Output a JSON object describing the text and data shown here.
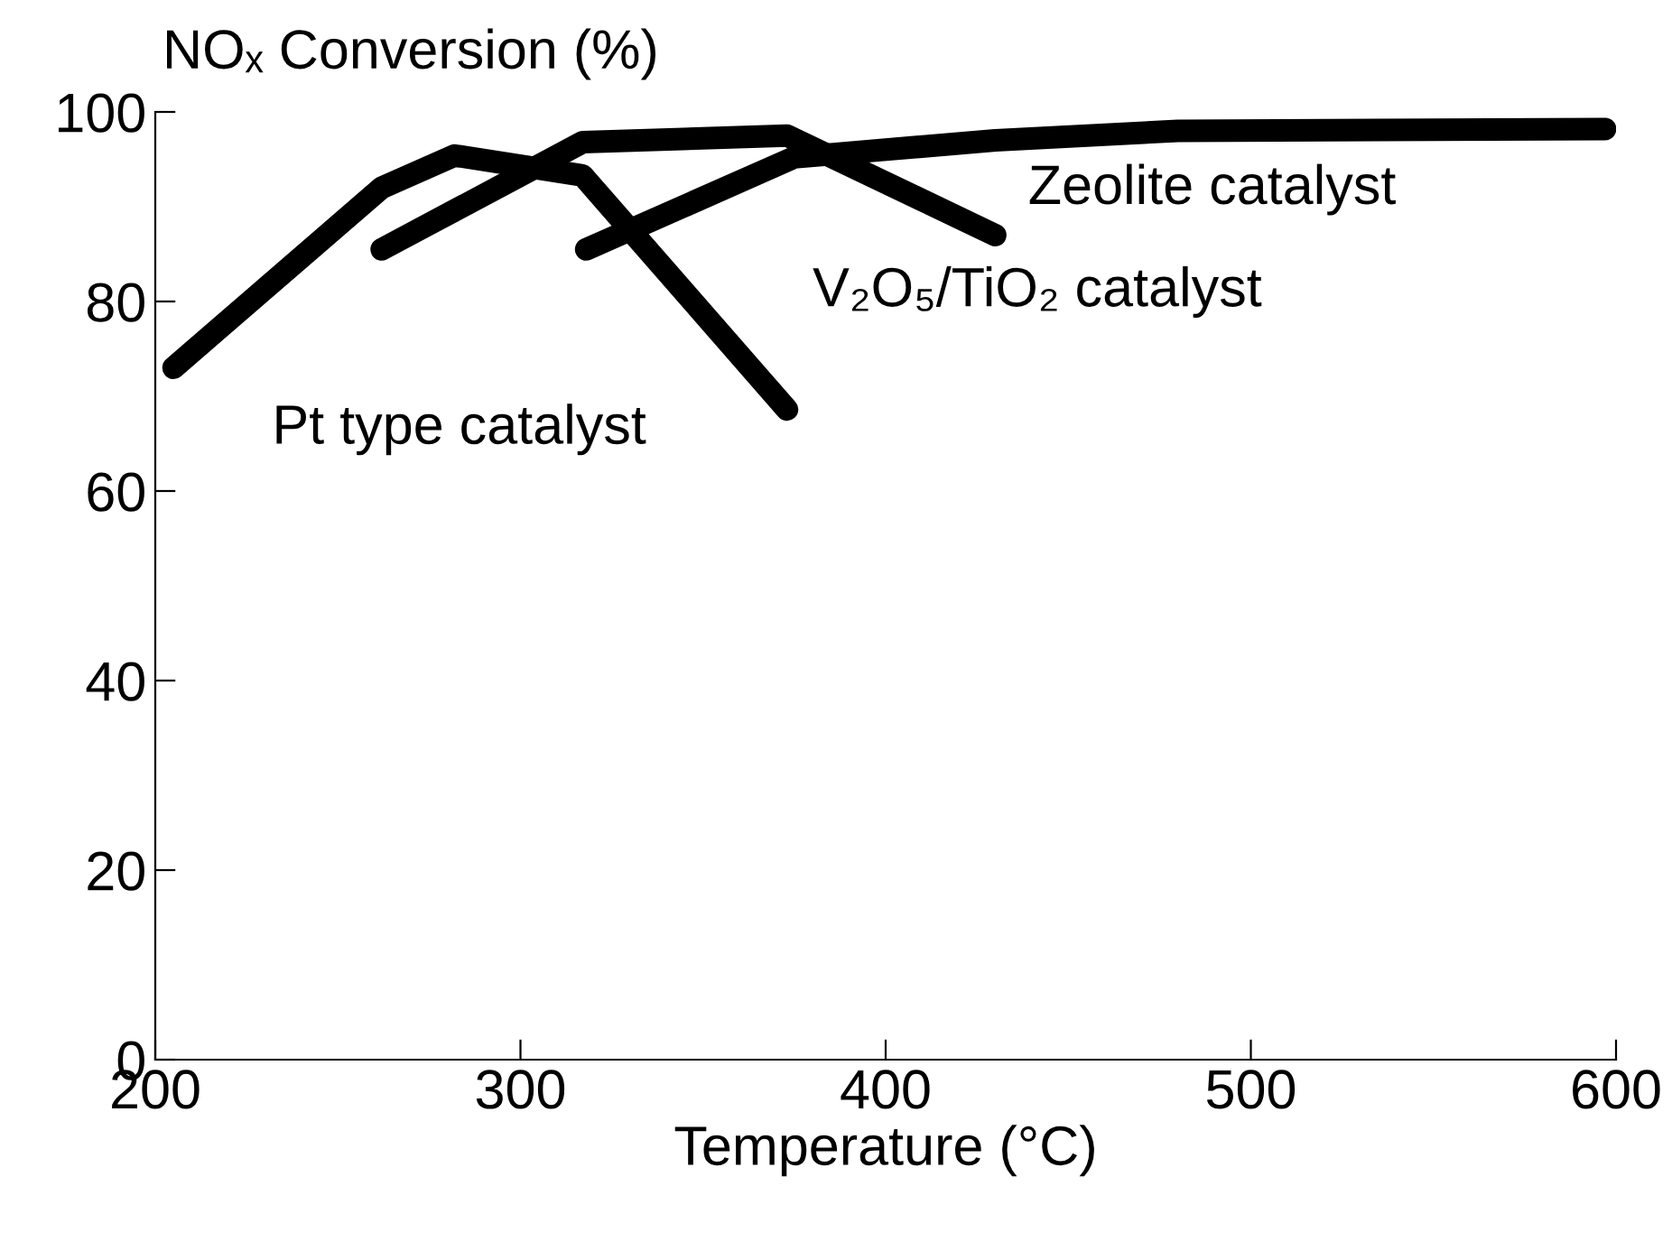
{
  "chart_data": {
    "type": "line",
    "ylabel": "NOₓ Conversion (%)",
    "xlabel": "Temperature (°C)",
    "series": [
      {
        "color": "#000000",
        "x": [
          205,
          262,
          282,
          317,
          373
        ],
        "values": [
          73,
          92,
          95.4,
          93.3,
          68.6
        ]
      },
      {
        "color": "#000000",
        "x": [
          262,
          317,
          373,
          430
        ],
        "values": [
          85.5,
          96.8,
          97.5,
          87
        ]
      },
      {
        "color": "#000000",
        "x": [
          318,
          375,
          430,
          480,
          597
        ],
        "values": [
          85.5,
          95.2,
          97,
          98,
          98.2
        ]
      }
    ],
    "annotations": [
      "Pt type catalyst",
      "V₂O₅/TiO₂ catalyst",
      "Zeolite catalyst"
    ],
    "xlim": [
      200,
      600
    ],
    "xticks": [
      200,
      300,
      400,
      500,
      600
    ],
    "ylim": [
      0,
      100
    ],
    "yticks": [
      0,
      20,
      40,
      60,
      80,
      100
    ],
    "grid": false,
    "line_style": "solid",
    "legend": false
  }
}
